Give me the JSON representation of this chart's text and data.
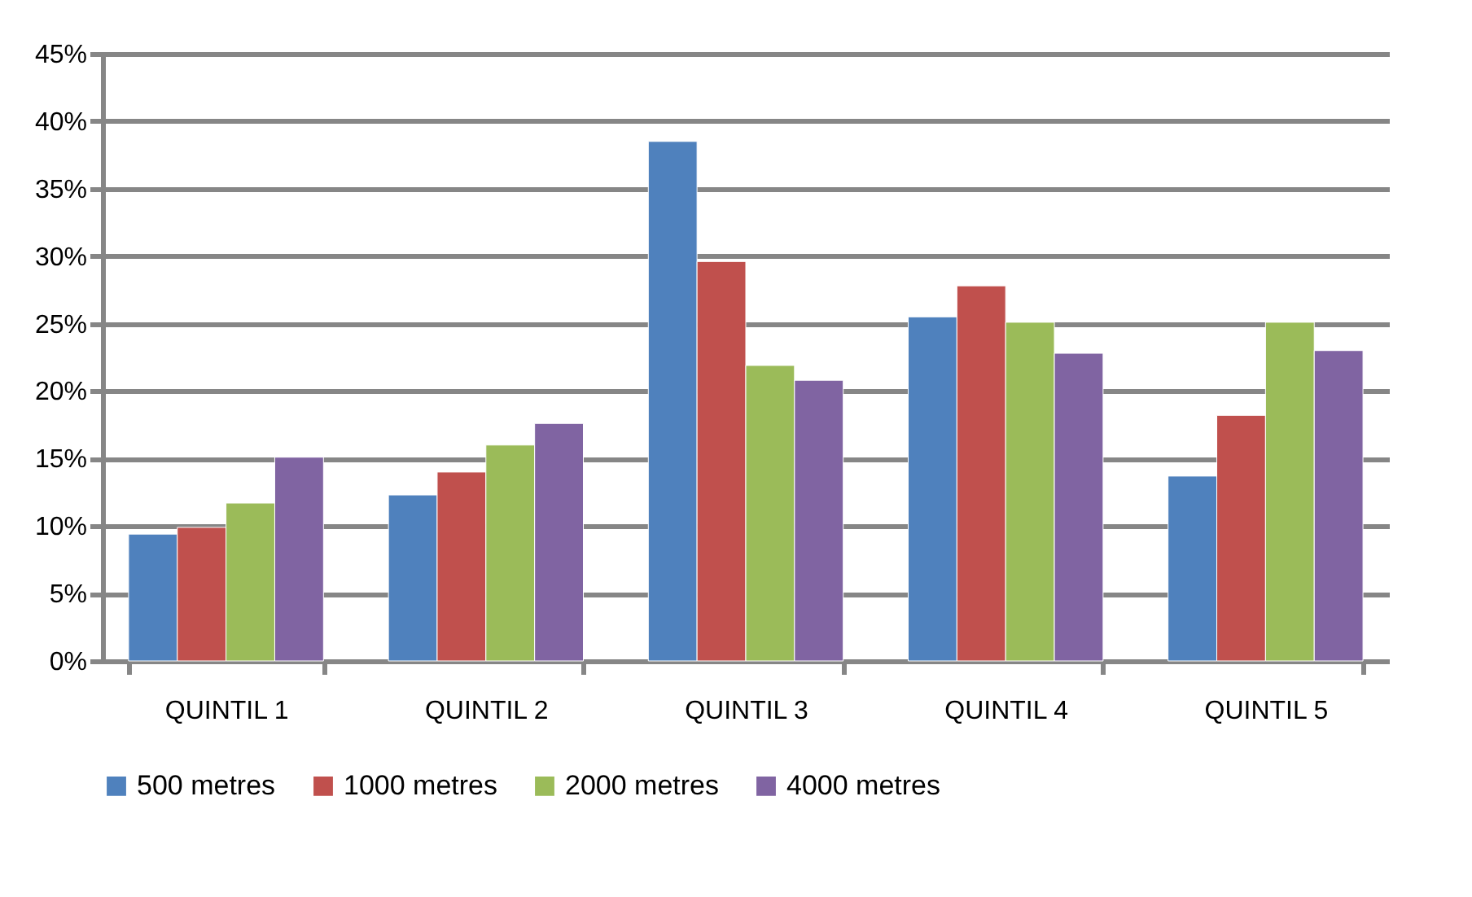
{
  "chart_data": {
    "type": "bar",
    "categories": [
      "QUINTIL 1",
      "QUINTIL 2",
      "QUINTIL 3",
      "QUINTIL 4",
      "QUINTIL 5"
    ],
    "series": [
      {
        "name": "500 metres",
        "color": "#4f81bd",
        "values": [
          9.4,
          12.3,
          38.5,
          25.5,
          13.7
        ]
      },
      {
        "name": "1000 metres",
        "color": "#c0504d",
        "values": [
          9.9,
          14.0,
          29.6,
          27.8,
          18.2
        ]
      },
      {
        "name": "2000 metres",
        "color": "#9bbb59",
        "values": [
          11.7,
          16.0,
          21.9,
          25.1,
          25.1
        ]
      },
      {
        "name": "4000 metres",
        "color": "#8064a2",
        "values": [
          15.1,
          17.6,
          20.8,
          22.8,
          23.0
        ]
      }
    ],
    "ylim": [
      0,
      45
    ],
    "yticks": [
      {
        "value": 0,
        "label": "0%"
      },
      {
        "value": 5,
        "label": "5%"
      },
      {
        "value": 10,
        "label": "10%"
      },
      {
        "value": 15,
        "label": "15%"
      },
      {
        "value": 20,
        "label": "20%"
      },
      {
        "value": 25,
        "label": "25%"
      },
      {
        "value": 30,
        "label": "30%"
      },
      {
        "value": 35,
        "label": "35%"
      },
      {
        "value": 40,
        "label": "40%"
      },
      {
        "value": 45,
        "label": "45%"
      }
    ],
    "grid": "y",
    "legend": "bottom"
  }
}
